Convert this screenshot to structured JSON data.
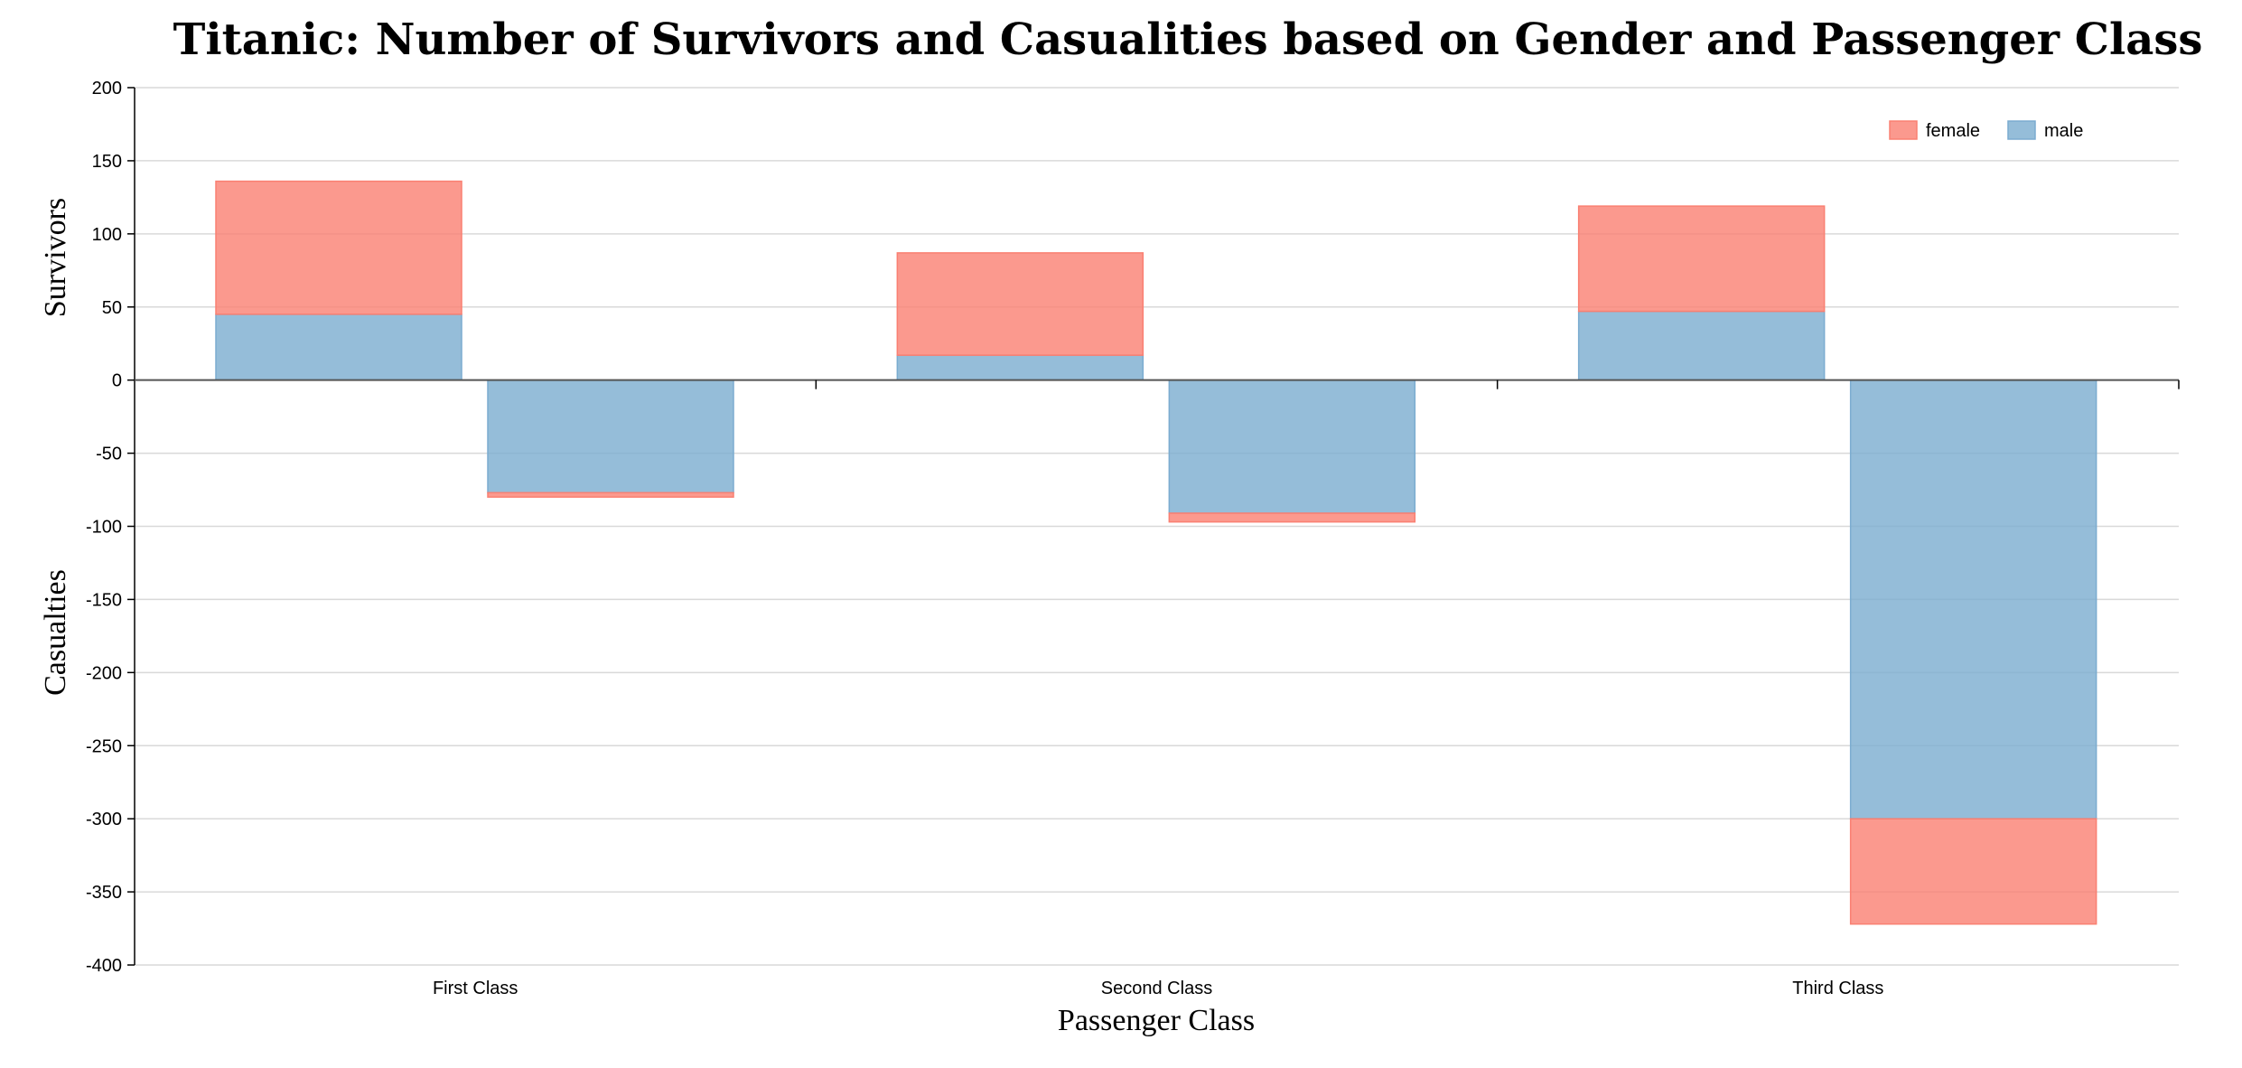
{
  "chart_data": {
    "type": "bar",
    "title": "Titanic: Number of Survivors and Casualities based on Gender and Passenger Class",
    "xlabel": "Passenger Class",
    "ylabel_top": "Survivors",
    "ylabel_bottom": "Casualties",
    "categories": [
      "First Class",
      "Second Class",
      "Third Class"
    ],
    "ylim": [
      -400,
      200
    ],
    "yticks": [
      200,
      150,
      100,
      50,
      0,
      -50,
      -100,
      -150,
      -200,
      -250,
      -300,
      -350,
      -400
    ],
    "grid": true,
    "legend_position": "top-right",
    "series": [
      {
        "name": "female",
        "color": "#fa8072",
        "survived": [
          91,
          70,
          72
        ],
        "casualties": [
          3,
          6,
          72
        ]
      },
      {
        "name": "male",
        "color": "#7bacd0",
        "survived": [
          45,
          17,
          47
        ],
        "casualties": [
          77,
          91,
          300
        ]
      }
    ],
    "stack_order_from_zero": [
      "male",
      "female"
    ]
  }
}
